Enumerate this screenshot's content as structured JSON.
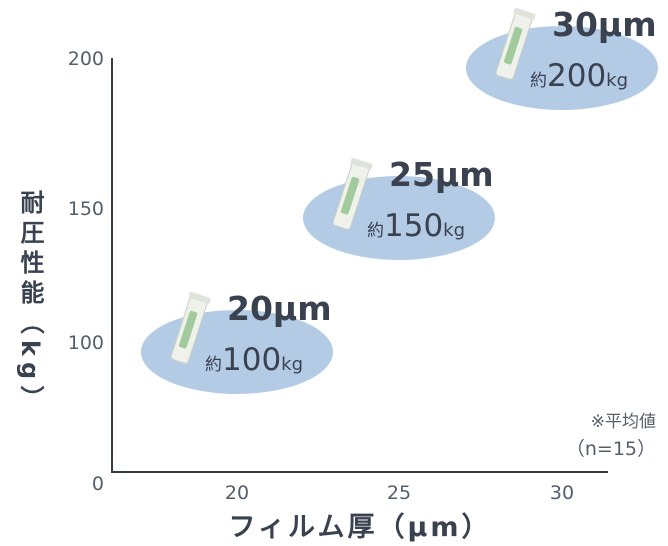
{
  "chart_data": {
    "type": "scatter",
    "title": "",
    "xlabel": "フィルム厚（μm）",
    "ylabel": "耐圧性能（kg）",
    "xlim": [
      15,
      31
    ],
    "ylim": [
      0,
      200
    ],
    "xticks": [
      20,
      25,
      30
    ],
    "yticks": [
      0,
      100,
      150,
      200
    ],
    "grid": false,
    "points": [
      {
        "x": 20,
        "y": 100,
        "thickness_label": "20μm",
        "value_prefix": "約",
        "value": "100",
        "unit": "kg"
      },
      {
        "x": 25,
        "y": 150,
        "thickness_label": "25μm",
        "value_prefix": "約",
        "value": "150",
        "unit": "kg"
      },
      {
        "x": 30,
        "y": 200,
        "thickness_label": "30μm",
        "value_prefix": "約",
        "value": "200",
        "unit": "kg"
      }
    ],
    "annotation": {
      "line1": "※平均値",
      "line2": "（n=15）"
    },
    "colors": {
      "axis": "#333c48",
      "tick": "#555f6b",
      "ellipse": "#b4cbe6",
      "label": "#3a4250",
      "bag": "#eef2ea",
      "bag_accent": "#8fbf8a"
    }
  }
}
